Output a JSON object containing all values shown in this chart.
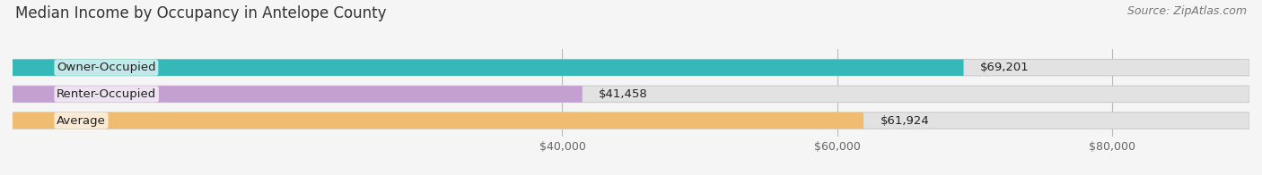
{
  "title": "Median Income by Occupancy in Antelope County",
  "source": "Source: ZipAtlas.com",
  "categories": [
    "Owner-Occupied",
    "Renter-Occupied",
    "Average"
  ],
  "values": [
    69201,
    41458,
    61924
  ],
  "bar_colors": [
    "#35b8b8",
    "#c4a0d0",
    "#f0bc72"
  ],
  "bar_labels": [
    "$69,201",
    "$41,458",
    "$61,924"
  ],
  "xlim": [
    0,
    90000
  ],
  "xticks": [
    40000,
    60000,
    80000
  ],
  "xticklabels": [
    "$40,000",
    "$60,000",
    "$80,000"
  ],
  "background_color": "#f5f5f5",
  "bar_bg_color": "#e2e2e2",
  "title_fontsize": 12,
  "source_fontsize": 9,
  "label_fontsize": 9.5,
  "tick_fontsize": 9
}
